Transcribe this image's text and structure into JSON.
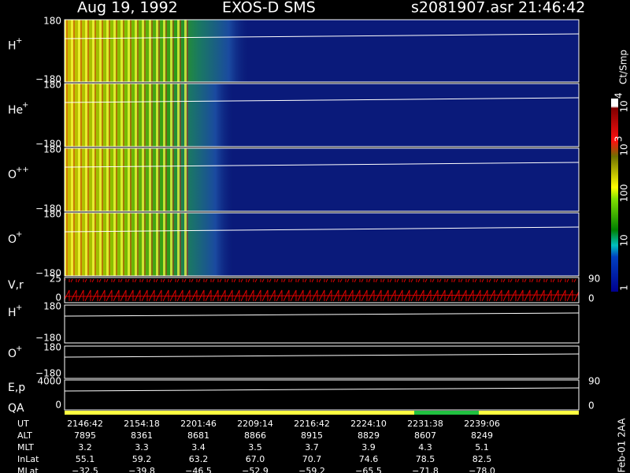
{
  "header": {
    "date": "Aug 19, 1992",
    "instrument": "EXOS-D SMS",
    "file": "s2081907.asr",
    "time": "21:46:42"
  },
  "spectrogram_panels": [
    {
      "label": "H",
      "sup": "+",
      "top_tick": "180",
      "bottom_tick": "−180"
    },
    {
      "label": "He",
      "sup": "+",
      "top_tick": "180",
      "bottom_tick": "−180"
    },
    {
      "label": "O",
      "sup": "++",
      "top_tick": "180",
      "bottom_tick": "−180"
    },
    {
      "label": "O",
      "sup": "+",
      "top_tick": "180",
      "bottom_tick": "−180"
    }
  ],
  "line_panels": [
    {
      "label": "V,r",
      "top_tick": "25",
      "bottom_tick": "0",
      "right_top": "90",
      "right_bottom": "0"
    },
    {
      "label": "H",
      "sup": "+",
      "top_tick": "180",
      "bottom_tick": "−180"
    },
    {
      "label": "O",
      "sup": "+",
      "top_tick": "180",
      "bottom_tick": "−180"
    },
    {
      "label": "E,p",
      "top_tick": "4000",
      "bottom_tick": "0",
      "right_top": "90",
      "right_bottom": "0"
    }
  ],
  "qa_label": "QA",
  "colorbar": {
    "unit": "Ct/Smp",
    "labels": [
      {
        "base": "10",
        "exp": "4"
      },
      {
        "base": "10",
        "exp": "3"
      },
      {
        "base": "100"
      },
      {
        "base": "10"
      },
      {
        "base": "1"
      }
    ]
  },
  "table": {
    "rows": [
      {
        "label": "UT",
        "values": [
          "2146:42",
          "2154:18",
          "2201:46",
          "2209:14",
          "2216:42",
          "2224:10",
          "2231:38",
          "2239:06"
        ]
      },
      {
        "label": "ALT",
        "values": [
          "7895",
          "8361",
          "8681",
          "8866",
          "8915",
          "8829",
          "8607",
          "8249"
        ]
      },
      {
        "label": "MLT",
        "values": [
          "3.2",
          "3.3",
          "3.4",
          "3.5",
          "3.7",
          "3.9",
          "4.3",
          "5.1"
        ]
      },
      {
        "label": "InLat",
        "values": [
          "55.1",
          "59.2",
          "63.2",
          "67.0",
          "70.7",
          "74.6",
          "78.5",
          "82.5"
        ]
      },
      {
        "label": "MLat",
        "values": [
          "−32.5",
          "−39.8",
          "−46.5",
          "−52.9",
          "−59.2",
          "−65.5",
          "−71.8",
          "−78.0"
        ]
      }
    ]
  },
  "side_note": "Feb-01 2AA"
}
